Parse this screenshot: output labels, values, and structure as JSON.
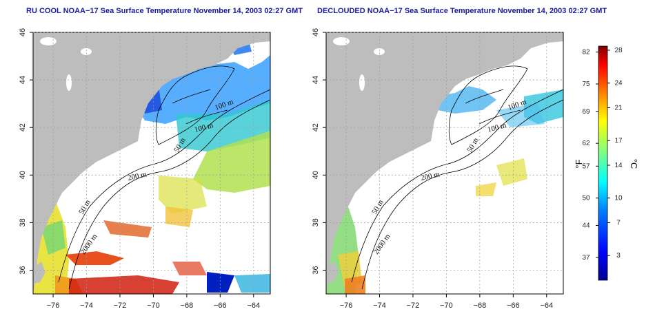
{
  "titles": {
    "left": "RU COOL NOAA−17 Sea Surface Temperature November 14, 2003 02:27 GMT",
    "right": "DECLOUDED NOAA−17 Sea Surface Temperature November 14, 2003 02:27 GMT"
  },
  "axes": {
    "x_ticks": [
      "−76",
      "−74",
      "−72",
      "−70",
      "−68",
      "−66",
      "−64"
    ],
    "x_values": [
      -76,
      -74,
      -72,
      -70,
      -68,
      -66,
      -64
    ],
    "y_ticks": [
      "36",
      "38",
      "40",
      "42",
      "44",
      "46"
    ],
    "y_values": [
      36,
      38,
      40,
      42,
      44,
      46
    ],
    "lon_range": [
      -77.2,
      -63.0
    ],
    "lat_range": [
      35.0,
      46.0
    ]
  },
  "contours": {
    "labels": [
      "100 m",
      "100 m",
      "50 m",
      "200 m",
      "50 m",
      "2000 m"
    ]
  },
  "colorbar": {
    "fahrenheit": [
      "82",
      "75",
      "69",
      "62",
      "57",
      "50",
      "44",
      "37"
    ],
    "fahrenheit_values": [
      82,
      75,
      69,
      62,
      57,
      50,
      44,
      37
    ],
    "celsius": [
      "28",
      "24",
      "21",
      "17",
      "14",
      "10",
      "7",
      "3"
    ],
    "celsius_values": [
      28,
      24,
      21,
      17,
      14,
      10,
      7,
      3
    ],
    "range_c": [
      0,
      28.5
    ],
    "unit_f": "°F",
    "unit_c": "°C",
    "colors": [
      "#00008f",
      "#0000ff",
      "#0080ff",
      "#00ffff",
      "#80ff80",
      "#ffff00",
      "#ff8000",
      "#ff0000",
      "#800000"
    ]
  },
  "colors": {
    "land": "#bdbdbd",
    "ocean": "#ffffff",
    "title": "#1a1aa6"
  }
}
